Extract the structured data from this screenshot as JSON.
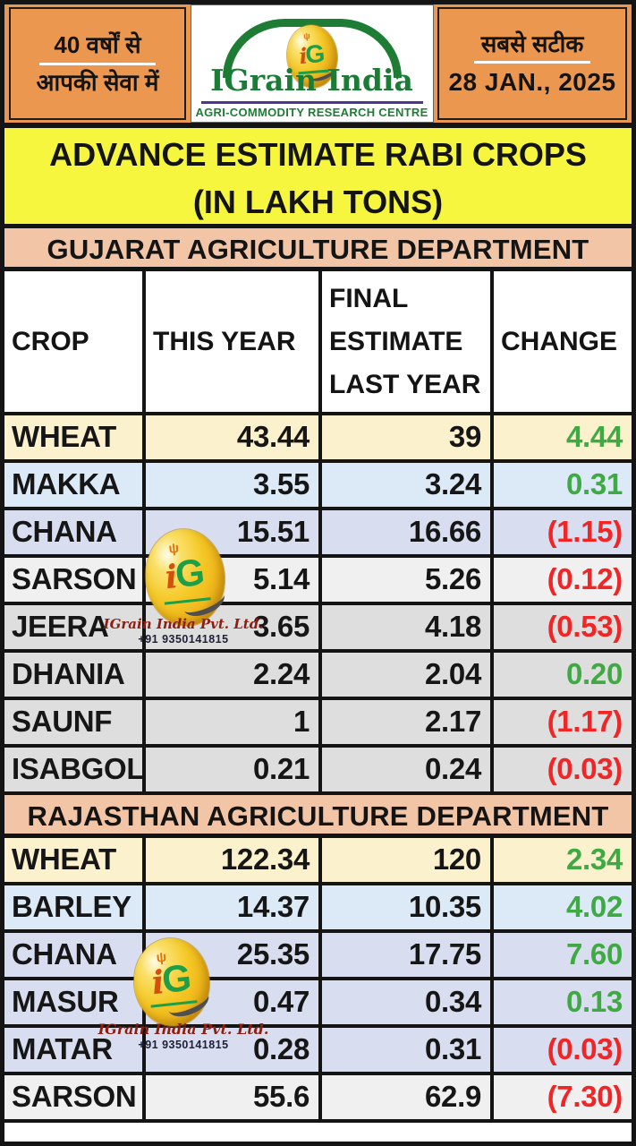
{
  "masthead": {
    "slogan_line1": "40 वर्षों से",
    "slogan_line2": "आपकी सेवा में",
    "accuracy_line": "सबसे सटीक",
    "date": "28 JAN., 2025"
  },
  "logo": {
    "brand": "IGrain India",
    "subtitle": "AGRI-COMMODITY RESEARCH CENTRE",
    "monogram_i": "i",
    "monogram_g": "G",
    "sprig_glyph": "ψ"
  },
  "title": {
    "line1": "ADVANCE ESTIMATE RABI CROPS",
    "line2": "(IN LAKH TONS)"
  },
  "table": {
    "columns": [
      "CROP",
      "THIS YEAR",
      "FINAL ESTIMATE LAST YEAR",
      "CHANGE"
    ],
    "sections": [
      {
        "name": "GUJARAT AGRICULTURE DEPARTMENT",
        "rows": [
          {
            "crop": "WHEAT",
            "this_year": "43.44",
            "last_year": "39",
            "change": "4.44",
            "direction": "up",
            "bg": "cream"
          },
          {
            "crop": "MAKKA",
            "this_year": "3.55",
            "last_year": "3.24",
            "change": "0.31",
            "direction": "up",
            "bg": "blue"
          },
          {
            "crop": "CHANA",
            "this_year": "15.51",
            "last_year": "16.66",
            "change": "(1.15)",
            "direction": "down",
            "bg": "lavender"
          },
          {
            "crop": "SARSON",
            "this_year": "5.14",
            "last_year": "5.26",
            "change": "(0.12)",
            "direction": "down",
            "bg": "graylight"
          },
          {
            "crop": "JEERA",
            "this_year": "3.65",
            "last_year": "4.18",
            "change": "(0.53)",
            "direction": "down",
            "bg": "gray"
          },
          {
            "crop": "DHANIA",
            "this_year": "2.24",
            "last_year": "2.04",
            "change": "0.20",
            "direction": "up",
            "bg": "gray"
          },
          {
            "crop": "SAUNF",
            "this_year": "1",
            "last_year": "2.17",
            "change": "(1.17)",
            "direction": "down",
            "bg": "gray"
          },
          {
            "crop": "ISABGOL",
            "this_year": "0.21",
            "last_year": "0.24",
            "change": "(0.03)",
            "direction": "down",
            "bg": "gray"
          }
        ]
      },
      {
        "name": "RAJASTHAN AGRICULTURE DEPARTMENT",
        "rows": [
          {
            "crop": "WHEAT",
            "this_year": "122.34",
            "last_year": "120",
            "change": "2.34",
            "direction": "up",
            "bg": "cream"
          },
          {
            "crop": "BARLEY",
            "this_year": "14.37",
            "last_year": "10.35",
            "change": "4.02",
            "direction": "up",
            "bg": "blue"
          },
          {
            "crop": "CHANA",
            "this_year": "25.35",
            "last_year": "17.75",
            "change": "7.60",
            "direction": "up",
            "bg": "lavender"
          },
          {
            "crop": "MASUR",
            "this_year": "0.47",
            "last_year": "0.34",
            "change": "0.13",
            "direction": "up",
            "bg": "lavender"
          },
          {
            "crop": "MATAR",
            "this_year": "0.28",
            "last_year": "0.31",
            "change": "(0.03)",
            "direction": "down",
            "bg": "lavender"
          },
          {
            "crop": "SARSON",
            "this_year": "55.6",
            "last_year": "62.9",
            "change": "(7.30)",
            "direction": "down",
            "bg": "graylight"
          }
        ]
      }
    ]
  },
  "watermark": {
    "company": "IGrain India Pvt. Ltd.",
    "phone": "+91 9350141815"
  },
  "colors": {
    "header_orange": "#EC9750",
    "banner_yellow": "#F6F63E",
    "banner_peach": "#F2C5A6",
    "row_cream": "#FCF1CD",
    "row_blue": "#DCE9F6",
    "row_lavender": "#D8DEEF",
    "row_gray": "#DEDEDE",
    "row_graylight": "#F0F0F0",
    "positive_green": "#3FA944",
    "negative_red": "#F12525",
    "brand_green": "#1B7C35",
    "logo_gold": "#F2C11E",
    "brand_underline_purple": "#50358F",
    "frame_black": "#141414"
  }
}
